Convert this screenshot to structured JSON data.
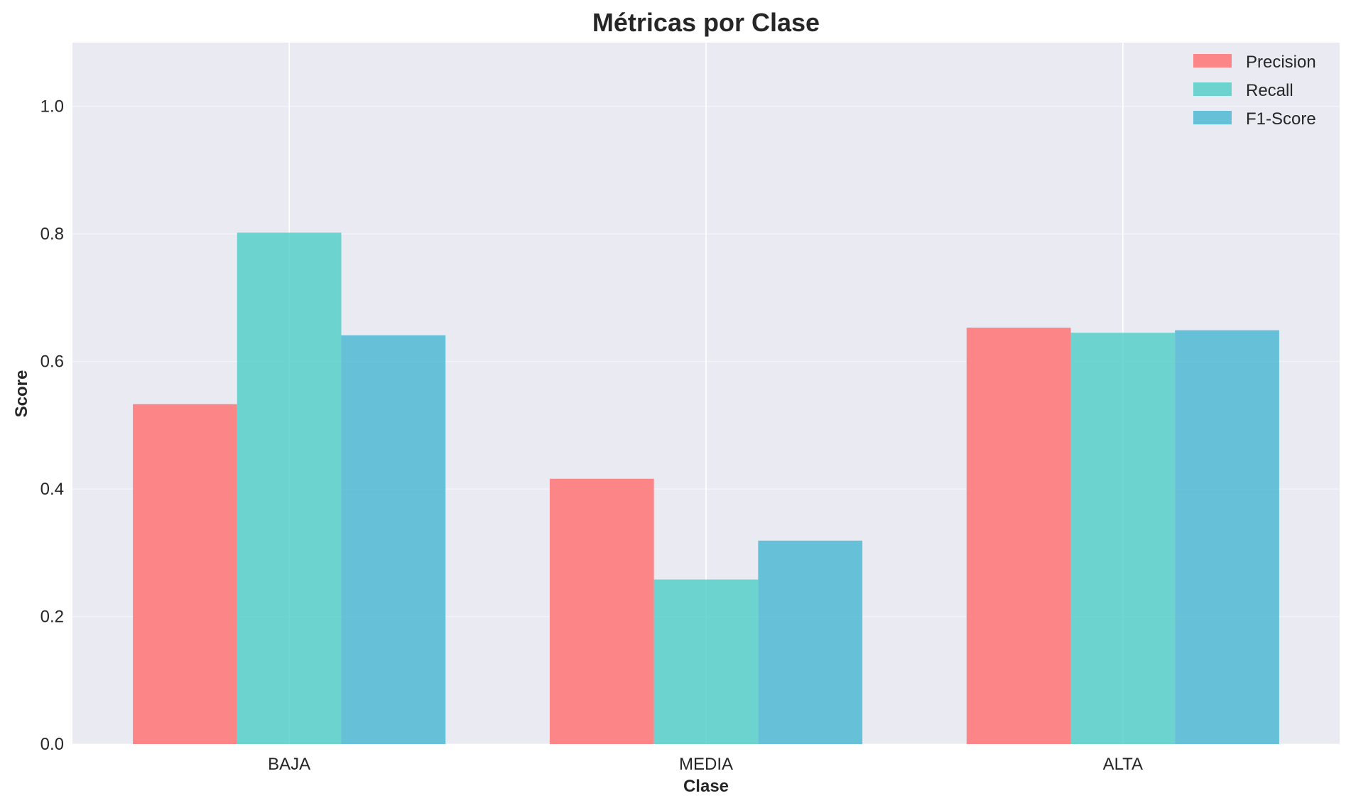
{
  "chart_data": {
    "type": "bar",
    "title": "Métricas por Clase",
    "xlabel": "Clase",
    "ylabel": "Score",
    "categories": [
      "BAJA",
      "MEDIA",
      "ALTA"
    ],
    "series": [
      {
        "name": "Precision",
        "values": [
          0.533,
          0.416,
          0.653
        ],
        "color": "#FF6B6B"
      },
      {
        "name": "Recall",
        "values": [
          0.802,
          0.258,
          0.645
        ],
        "color": "#4ECDC4"
      },
      {
        "name": "F1-Score",
        "values": [
          0.641,
          0.319,
          0.649
        ],
        "color": "#45B7D1"
      }
    ],
    "ylim": [
      0,
      1.1
    ],
    "yticks": [
      "0.0",
      "0.2",
      "0.4",
      "0.6",
      "0.8",
      "1.0"
    ],
    "grid": true,
    "legend_position": "top-right",
    "background": "#EAEAF2"
  }
}
